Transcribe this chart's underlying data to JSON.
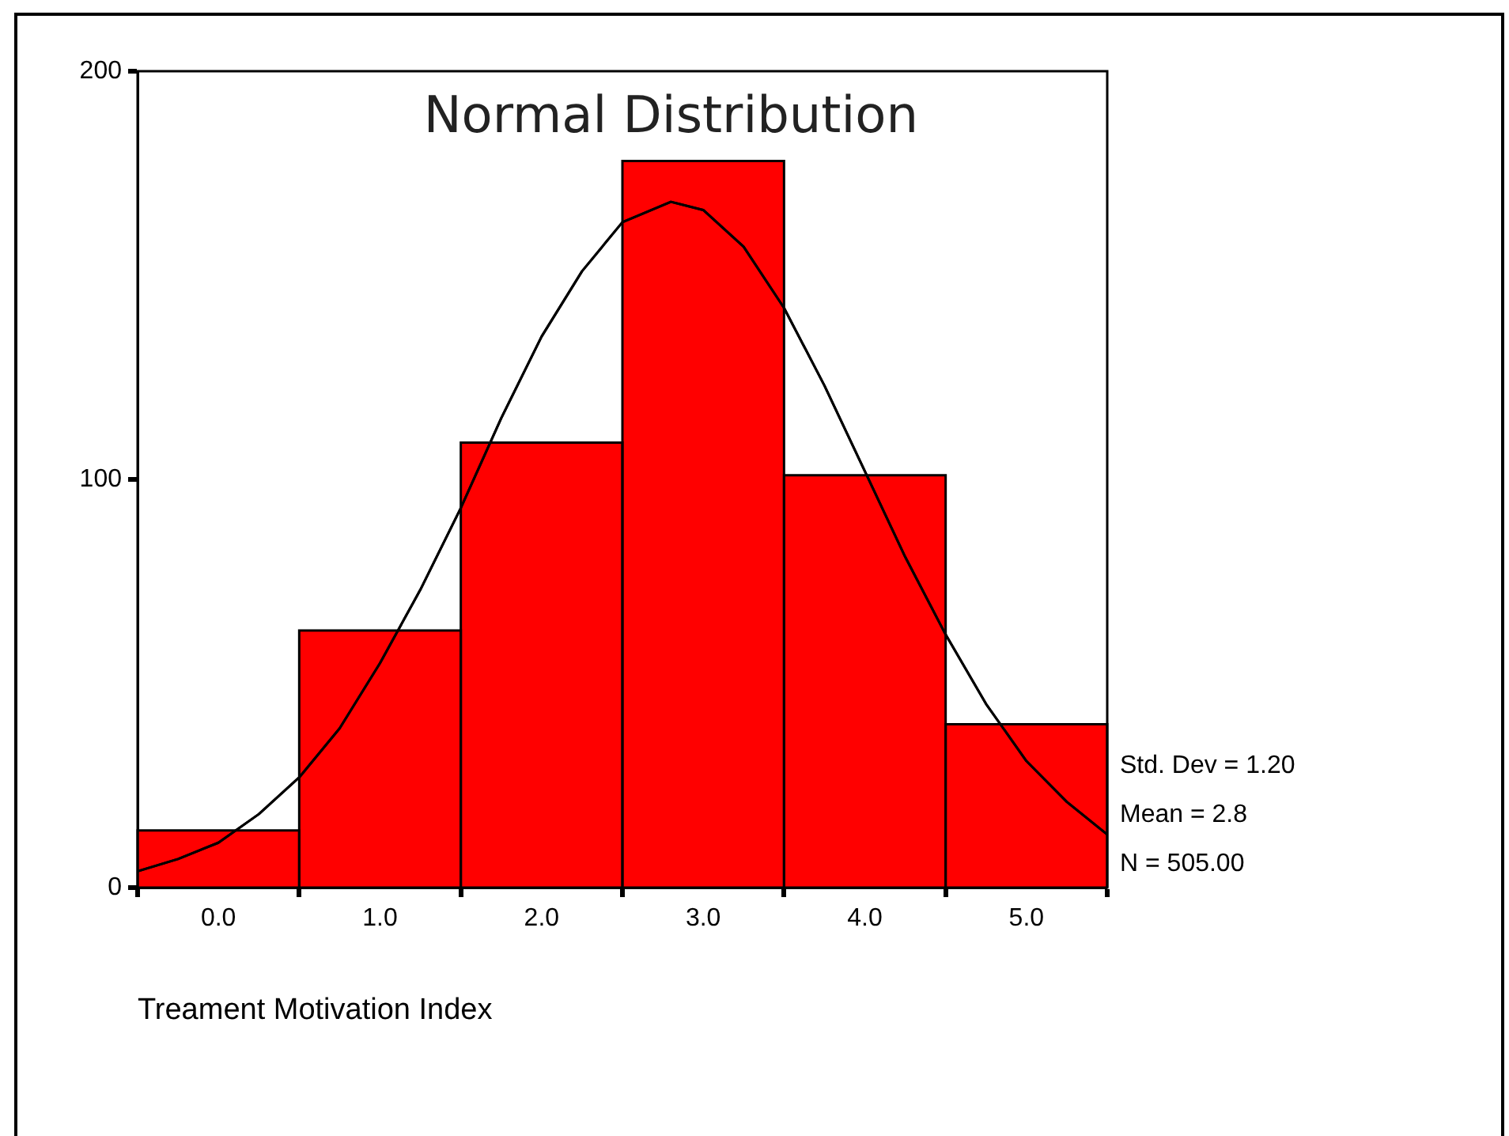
{
  "chart_data": {
    "type": "histogram",
    "title": "Normal Distribution",
    "xlabel": "Treament Motivation Index",
    "xlim": [
      -0.5,
      5.5
    ],
    "xticks": [
      {
        "value": 0,
        "label": "0.0"
      },
      {
        "value": 1,
        "label": "1.0"
      },
      {
        "value": 2,
        "label": "2.0"
      },
      {
        "value": 3,
        "label": "3.0"
      },
      {
        "value": 4,
        "label": "4.0"
      },
      {
        "value": 5,
        "label": "5.0"
      }
    ],
    "ylim": [
      0,
      200
    ],
    "yticks": [
      0,
      100,
      200
    ],
    "grid": false,
    "legend": false,
    "color": "#ff0000",
    "bins": [
      -0.5,
      0.5,
      1.5,
      2.5,
      3.5,
      4.5,
      5.5
    ],
    "values": [
      14,
      63,
      109,
      178,
      101,
      40
    ],
    "series": [
      {
        "type": "line",
        "color": "#000000",
        "x": [
          -0.5,
          -0.25,
          0,
          0.25,
          0.5,
          0.75,
          1,
          1.25,
          1.5,
          1.75,
          2,
          2.25,
          2.5,
          2.8,
          3,
          3.25,
          3.5,
          3.75,
          4,
          4.25,
          4.5,
          4.75,
          5,
          5.25,
          5.5
        ],
        "values": [
          4,
          7,
          11,
          18,
          27,
          39,
          55,
          73,
          93,
          115,
          135,
          151,
          163,
          168,
          166,
          157,
          142,
          123,
          102,
          81,
          62,
          45,
          31,
          21,
          13
        ]
      }
    ],
    "annotations": [
      "Std. Dev = 1.20",
      "Mean = 2.8",
      "N = 505.00"
    ]
  }
}
